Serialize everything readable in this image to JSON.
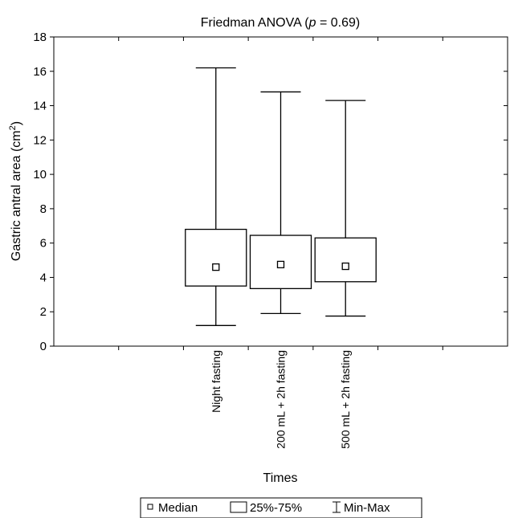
{
  "chart_data": {
    "type": "boxplot",
    "title": {
      "prefix": "Friedman ANOVA (",
      "p_symbol": "p",
      "suffix": " = 0.69)"
    },
    "xlabel": "Times",
    "ylabel": {
      "main": "Gastric antral area (cm",
      "superscript": "2",
      "close": ")"
    },
    "ylim": [
      0,
      18
    ],
    "yticks": [
      0,
      2,
      4,
      6,
      8,
      10,
      12,
      14,
      16,
      18
    ],
    "grid": false,
    "categories": [
      "Night fasting",
      "200 mL + 2h fasting",
      "500 mL + 2h fasting"
    ],
    "series": [
      {
        "min": 1.2,
        "q1": 3.5,
        "median": 4.6,
        "q3": 6.8,
        "max": 16.2
      },
      {
        "min": 1.9,
        "q1": 3.35,
        "median": 4.75,
        "q3": 6.45,
        "max": 14.8
      },
      {
        "min": 1.75,
        "q1": 3.75,
        "median": 4.65,
        "q3": 6.3,
        "max": 14.3
      }
    ],
    "legend": {
      "position": "bottom",
      "items": [
        {
          "symbol": "median-square",
          "label": "Median"
        },
        {
          "symbol": "box",
          "label": "25%-75%"
        },
        {
          "symbol": "whisker",
          "label": "Min-Max"
        }
      ]
    }
  }
}
